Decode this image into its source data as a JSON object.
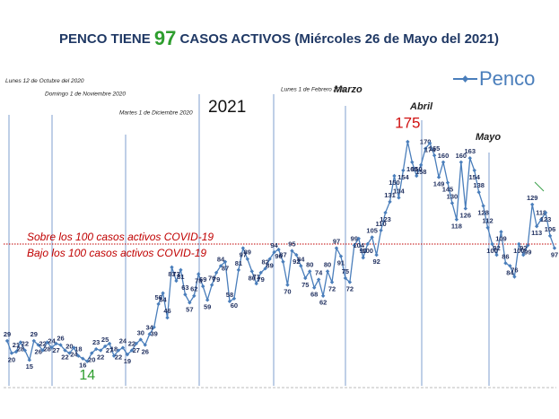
{
  "chart_data": {
    "type": "line",
    "title_prefix": "PENCO TIENE",
    "title_number": "97",
    "title_suffix": "CASOS ACTIVOS (Miércoles 26 de Mayo del 2021)",
    "series": [
      {
        "name": "Penco",
        "color": "#4a7ebb",
        "values": [
          29,
          20,
          21,
          28,
          22,
          15,
          29,
          26,
          22,
          28,
          24,
          27,
          26,
          22,
          20,
          24,
          18,
          16,
          14,
          20,
          23,
          22,
          25,
          27,
          18,
          22,
          24,
          19,
          22,
          27,
          30,
          26,
          34,
          39,
          56,
          64,
          46,
          83,
          73,
          81,
          63,
          57,
          62,
          78,
          69,
          59,
          70,
          79,
          84,
          87,
          58,
          60,
          81,
          97,
          89,
          80,
          71,
          79,
          82,
          89,
          94,
          96,
          87,
          70,
          95,
          92,
          84,
          75,
          80,
          68,
          74,
          62,
          80,
          72,
          97,
          91,
          75,
          72,
          99,
          104,
          90,
          100,
          105,
          92,
          110,
          123,
          131,
          150,
          134,
          154,
          175,
          160,
          150,
          158,
          170,
          174,
          165,
          149,
          160,
          145,
          130,
          118,
          160,
          126,
          163,
          154,
          138,
          128,
          112,
          100,
          92,
          109,
          86,
          84,
          76,
          100,
          92,
          99,
          129,
          113,
          118,
          123,
          106,
          97
        ]
      }
    ],
    "ylim": [
      0,
      200
    ],
    "threshold": 100,
    "above_text": "Sobre los 100 casos activos COVID-19",
    "below_text": "Bajo los 100 casos activos COVID-19",
    "annotations": [
      "Lunes 12 de Octubre del 2020",
      "Domingo 1 de Noviembre 2020",
      "Martes 1 de Diciembre 2020",
      "2021",
      "Lunes 1 de Febrero 2020",
      "Marzo",
      "Abril",
      "Mayo"
    ]
  }
}
